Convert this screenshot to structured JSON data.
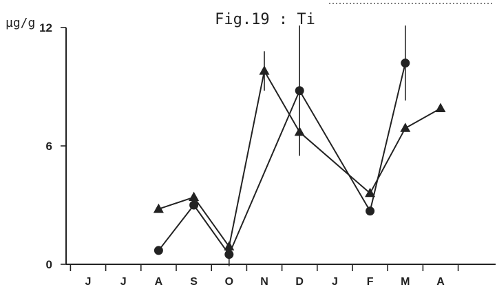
{
  "figure": {
    "title": "Fig.19 : Ti",
    "unit_label": "µg/g"
  },
  "chart_data": {
    "type": "line",
    "title": "Fig.19 : Ti",
    "ylabel": "µg/g",
    "xlabel": "",
    "ylim": [
      0,
      12
    ],
    "yticks": [
      0,
      6,
      12
    ],
    "grid": false,
    "categories": [
      "J",
      "J",
      "A",
      "S",
      "O",
      "N",
      "D",
      "J",
      "F",
      "M",
      "A"
    ],
    "series": [
      {
        "marker": "circle",
        "values": [
          null,
          null,
          0.7,
          3.0,
          0.5,
          null,
          8.8,
          null,
          2.7,
          10.2,
          null
        ],
        "error": [
          null,
          null,
          null,
          null,
          0.6,
          null,
          3.3,
          null,
          null,
          1.9,
          null
        ]
      },
      {
        "marker": "triangle",
        "values": [
          null,
          null,
          2.8,
          3.4,
          0.9,
          9.8,
          6.7,
          null,
          3.6,
          6.9,
          7.9
        ],
        "error": [
          null,
          null,
          null,
          null,
          null,
          1.0,
          null,
          null,
          null,
          null,
          null
        ]
      }
    ]
  }
}
